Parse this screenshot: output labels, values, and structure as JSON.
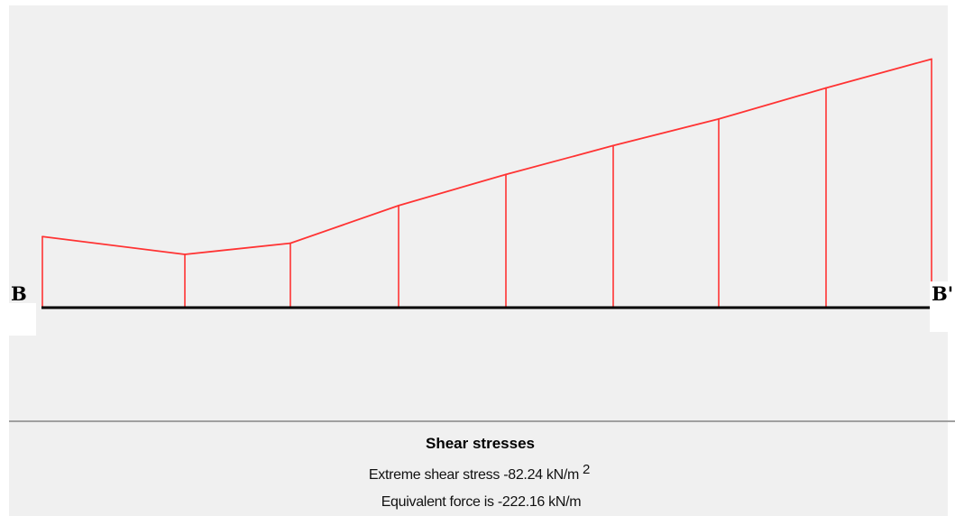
{
  "diagram": {
    "start_label": "B",
    "end_label": "B'",
    "colors": {
      "background": "#f0f0f0",
      "stress_line": "#ff3333",
      "baseline": "#000000"
    }
  },
  "chart_data": {
    "type": "line",
    "title": "Shear stresses",
    "grid": false,
    "stress_diagram_points": {
      "description_units": "relative stress magnitude, B to B'",
      "stations": [
        0,
        1,
        2,
        3,
        4,
        5,
        6,
        7,
        8
      ],
      "values_left": [
        0.32,
        0.24,
        0.29,
        0.46,
        0.6,
        0.73,
        0.85,
        0.99,
        1.12
      ],
      "values_right": [
        0.24,
        0.29,
        0.46,
        0.6,
        0.73,
        0.85,
        0.99,
        1.12,
        1.27
      ]
    }
  },
  "caption": {
    "title": "Shear stresses",
    "line1_text": "Extreme shear stress -82.24  kN/m",
    "line1_exponent": "2",
    "line2_text": "Equivalent force is -222.16 kN/m"
  }
}
